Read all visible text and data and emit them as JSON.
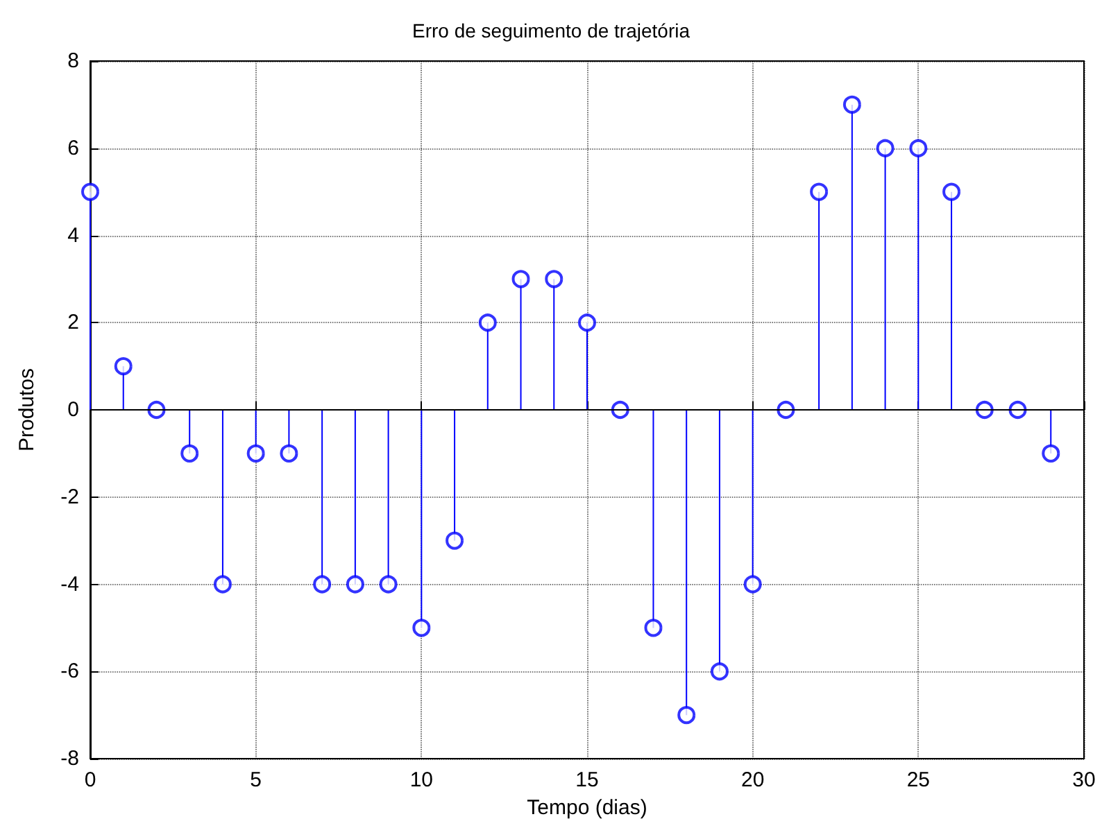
{
  "chart_data": {
    "type": "lollipop",
    "title": "Erro de seguimento de trajetória",
    "xlabel": "Tempo (dias)",
    "ylabel": "Produtos",
    "x": [
      0,
      1,
      2,
      3,
      4,
      5,
      6,
      7,
      8,
      9,
      10,
      11,
      12,
      13,
      14,
      15,
      16,
      17,
      18,
      19,
      20,
      21,
      22,
      23,
      24,
      25,
      26,
      27,
      28,
      29
    ],
    "values": [
      5,
      1,
      0,
      -1,
      -4,
      -1,
      -1,
      -4,
      -4,
      -4,
      -5,
      -3,
      2,
      3,
      3,
      2,
      0,
      -5,
      -7,
      -6,
      -4,
      0,
      5,
      7,
      6,
      6,
      5,
      0,
      0,
      -1
    ],
    "color": "#0000ff",
    "marker": "circle",
    "grid": true,
    "line_style": "dotted",
    "xlim": [
      0,
      30
    ],
    "xticks": [
      0,
      5,
      10,
      15,
      20,
      25,
      30
    ],
    "ylim": [
      -8,
      8
    ],
    "yticks": [
      -8,
      -6,
      -4,
      -2,
      0,
      2,
      4,
      6,
      8
    ]
  }
}
